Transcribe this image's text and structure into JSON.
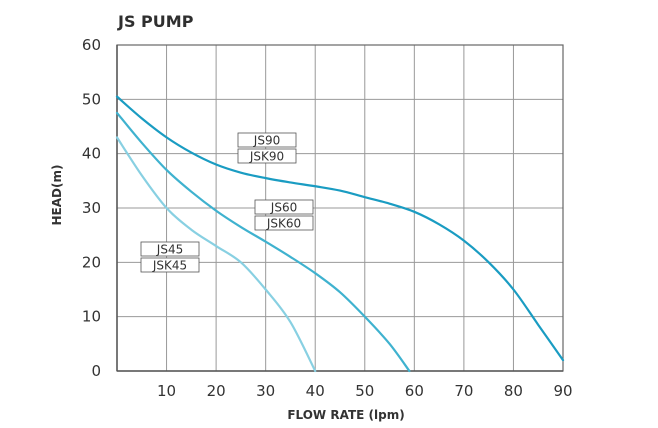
{
  "chart_data": {
    "type": "line",
    "title": "JS PUMP",
    "xlabel": "FLOW RATE (lpm)",
    "ylabel": "HEAD(m)",
    "xlim": [
      0,
      90
    ],
    "ylim": [
      0,
      60
    ],
    "xticks": [
      10,
      20,
      30,
      40,
      50,
      60,
      70,
      80,
      90
    ],
    "yticks": [
      0,
      10,
      20,
      30,
      40,
      50,
      60
    ],
    "grid": true,
    "series": [
      {
        "name": "JS90 / JSK90",
        "labels": [
          "JS90",
          "JSK90"
        ],
        "color": "#1a9cc2",
        "x": [
          0,
          5,
          10,
          15,
          20,
          25,
          30,
          35,
          40,
          45,
          50,
          55,
          60,
          65,
          70,
          75,
          80,
          85,
          90
        ],
        "y": [
          50.5,
          46.5,
          43,
          40.2,
          38,
          36.5,
          35.5,
          34.7,
          34,
          33.2,
          32,
          30.8,
          29.3,
          27,
          24,
          20,
          15,
          8.5,
          2
        ]
      },
      {
        "name": "JS60 / JSK60",
        "labels": [
          "JS60",
          "JSK60"
        ],
        "color": "#3fb2cf",
        "x": [
          0,
          5,
          10,
          15,
          20,
          25,
          30,
          35,
          40,
          45,
          50,
          55,
          59
        ],
        "y": [
          47.5,
          42,
          37,
          33,
          29.5,
          26.5,
          23.8,
          21,
          18,
          14.5,
          10,
          5,
          0
        ]
      },
      {
        "name": "JS45 / JSK45",
        "labels": [
          "JS45",
          "JSK45"
        ],
        "color": "#88d0e2",
        "x": [
          0,
          5,
          10,
          15,
          20,
          25,
          30,
          35,
          40
        ],
        "y": [
          43,
          36,
          30,
          26,
          23,
          20,
          15,
          9,
          0
        ]
      }
    ]
  }
}
